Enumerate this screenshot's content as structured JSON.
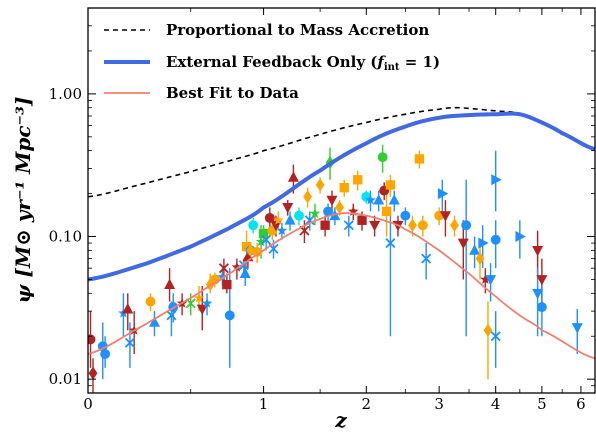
{
  "chart_data": {
    "type": "scatter",
    "title": "",
    "xlabel": "z",
    "ylabel": "ψ [M⊙ yr⁻¹ Mpc⁻³]",
    "x_scale": "log(1+z)",
    "y_scale": "log",
    "xlim": [
      0,
      6.4
    ],
    "ylim": [
      0.008,
      4.0
    ],
    "x_ticks": [
      0,
      1,
      2,
      3,
      4,
      5,
      6
    ],
    "x_tick_labels": [
      "0",
      "1",
      "2",
      "3",
      "4",
      "5",
      "6"
    ],
    "y_ticks": [
      0.01,
      0.1,
      1.0
    ],
    "y_tick_labels": [
      "0.01",
      "0.10",
      "1.00"
    ],
    "grid": false,
    "legend_position": "top-left",
    "series": [
      {
        "name": "Proportional to Mass Accretion",
        "kind": "line",
        "style": "dashed",
        "color": "#000000",
        "x": [
          0,
          0.25,
          0.5,
          0.75,
          1.0,
          1.5,
          2.0,
          2.5,
          3.0,
          3.25,
          3.5,
          4.0,
          4.5,
          5.0,
          5.5,
          6.4
        ],
        "y": [
          0.19,
          0.235,
          0.285,
          0.34,
          0.4,
          0.52,
          0.63,
          0.72,
          0.78,
          0.8,
          0.79,
          0.76,
          0.73,
          0.62,
          0.53,
          0.41
        ]
      },
      {
        "name": "External Feedback Only (f_int = 1)",
        "legend_label": "External Feedback Only (",
        "legend_math": "f",
        "legend_sub": "int",
        "legend_eq": " = 1)",
        "kind": "line",
        "style": "solid",
        "color": "#4169e1",
        "x": [
          0,
          0.25,
          0.5,
          0.75,
          1.0,
          1.5,
          2.0,
          2.5,
          3.0,
          3.5,
          4.0,
          4.5,
          5.0,
          5.5,
          6.4
        ],
        "y": [
          0.05,
          0.064,
          0.085,
          0.115,
          0.16,
          0.29,
          0.45,
          0.59,
          0.68,
          0.71,
          0.72,
          0.72,
          0.63,
          0.53,
          0.41
        ]
      },
      {
        "name": "Best Fit to Data",
        "kind": "line",
        "style": "solid",
        "color": "#f08070",
        "x": [
          0,
          0.25,
          0.5,
          0.75,
          1.0,
          1.25,
          1.5,
          1.75,
          2.0,
          2.25,
          2.5,
          3.0,
          3.5,
          4.0,
          4.5,
          5.0,
          6.4
        ],
        "y": [
          0.015,
          0.024,
          0.037,
          0.055,
          0.08,
          0.108,
          0.133,
          0.146,
          0.14,
          0.128,
          0.112,
          0.08,
          0.055,
          0.038,
          0.028,
          0.022,
          0.014
        ]
      }
    ],
    "points": [
      {
        "x": 0.01,
        "y": 0.019,
        "shape": "circle",
        "color": "#b22222",
        "err": [
          0.012,
          0.03
        ]
      },
      {
        "x": 0.02,
        "y": 0.011,
        "shape": "diamond",
        "color": "#b22222",
        "err": [
          0.008,
          0.014
        ]
      },
      {
        "x": 0.06,
        "y": 0.017,
        "shape": "circle",
        "color": "#1e90ff",
        "err": [
          0.01,
          0.025
        ]
      },
      {
        "x": 0.07,
        "y": 0.015,
        "shape": "circle",
        "color": "#1e90ff",
        "err": [
          0.012,
          0.02
        ]
      },
      {
        "x": 0.15,
        "y": 0.029,
        "shape": "star",
        "color": "#1e90ff",
        "err": [
          0.02,
          0.04
        ]
      },
      {
        "x": 0.17,
        "y": 0.031,
        "shape": "triangle-up",
        "color": "#b22222",
        "err": [
          0.022,
          0.04
        ]
      },
      {
        "x": 0.18,
        "y": 0.018,
        "shape": "x",
        "color": "#1e90ff",
        "err": [
          0.012,
          0.025
        ]
      },
      {
        "x": 0.2,
        "y": 0.022,
        "shape": "star",
        "color": "#b22222",
        "err": [
          0.015,
          0.03
        ]
      },
      {
        "x": 0.28,
        "y": 0.035,
        "shape": "circle",
        "color": "#ffa500",
        "err": [
          0.03,
          0.04
        ]
      },
      {
        "x": 0.3,
        "y": 0.025,
        "shape": "triangle-up",
        "color": "#1e90ff",
        "err": [
          0.02,
          0.03
        ]
      },
      {
        "x": 0.38,
        "y": 0.046,
        "shape": "triangle-up",
        "color": "#b22222",
        "err": [
          0.035,
          0.06
        ]
      },
      {
        "x": 0.39,
        "y": 0.028,
        "shape": "x",
        "color": "#1e90ff",
        "err": [
          0.02,
          0.035
        ]
      },
      {
        "x": 0.4,
        "y": 0.032,
        "shape": "circle",
        "color": "#1e90ff",
        "err": [
          0.025,
          0.04
        ]
      },
      {
        "x": 0.45,
        "y": 0.034,
        "shape": "star",
        "color": "#b22222",
        "err": [
          0.028,
          0.04
        ]
      },
      {
        "x": 0.5,
        "y": 0.034,
        "shape": "x",
        "color": "#32cd32",
        "err": [
          0.028,
          0.04
        ]
      },
      {
        "x": 0.55,
        "y": 0.037,
        "shape": "star",
        "color": "#ffa500",
        "err": [
          0.03,
          0.045
        ]
      },
      {
        "x": 0.57,
        "y": 0.031,
        "shape": "triangle-down",
        "color": "#b22222",
        "err": [
          0.022,
          0.045
        ]
      },
      {
        "x": 0.6,
        "y": 0.034,
        "shape": "star",
        "color": "#1e90ff",
        "err": [
          0.028,
          0.04
        ]
      },
      {
        "x": 0.62,
        "y": 0.046,
        "shape": "diamond",
        "color": "#ffa500",
        "err": [
          0.04,
          0.055
        ]
      },
      {
        "x": 0.65,
        "y": 0.05,
        "shape": "circle",
        "color": "#ffa500",
        "err": [
          0.044,
          0.056
        ]
      },
      {
        "x": 0.7,
        "y": 0.052,
        "shape": "star",
        "color": "#1e90ff",
        "err": [
          0.045,
          0.06
        ]
      },
      {
        "x": 0.71,
        "y": 0.06,
        "shape": "x",
        "color": "#b22222",
        "err": [
          0.05,
          0.07
        ]
      },
      {
        "x": 0.73,
        "y": 0.046,
        "shape": "square",
        "color": "#b22222",
        "err": [
          0.04,
          0.055
        ]
      },
      {
        "x": 0.75,
        "y": 0.028,
        "shape": "circle",
        "color": "#1e90ff",
        "err": [
          0.012,
          0.06
        ]
      },
      {
        "x": 0.8,
        "y": 0.061,
        "shape": "star",
        "color": "#b22222",
        "err": [
          0.05,
          0.07
        ]
      },
      {
        "x": 0.85,
        "y": 0.063,
        "shape": "x",
        "color": "#1e90ff",
        "err": [
          0.055,
          0.07
        ]
      },
      {
        "x": 0.86,
        "y": 0.055,
        "shape": "triangle-up",
        "color": "#1e90ff",
        "err": [
          0.045,
          0.065
        ]
      },
      {
        "x": 0.87,
        "y": 0.085,
        "shape": "square",
        "color": "#ffa500",
        "err": [
          0.06,
          0.11
        ]
      },
      {
        "x": 0.88,
        "y": 0.072,
        "shape": "triangle-up",
        "color": "#b22222",
        "err": [
          0.06,
          0.085
        ]
      },
      {
        "x": 0.9,
        "y": 0.08,
        "shape": "circle",
        "color": "#1e90ff",
        "err": [
          0.07,
          0.09
        ]
      },
      {
        "x": 0.9,
        "y": 0.08,
        "shape": "diamond",
        "color": "#ffa500",
        "err": [
          0.07,
          0.09
        ]
      },
      {
        "x": 0.92,
        "y": 0.12,
        "shape": "circle",
        "color": "#00e5ee",
        "err": [
          0.105,
          0.135
        ]
      },
      {
        "x": 0.95,
        "y": 0.078,
        "shape": "circle",
        "color": "#ffa500",
        "err": [
          0.065,
          0.09
        ]
      },
      {
        "x": 0.98,
        "y": 0.092,
        "shape": "star",
        "color": "#32cd32",
        "err": [
          0.07,
          0.12
        ]
      },
      {
        "x": 1.0,
        "y": 0.105,
        "shape": "square",
        "color": "#32cd32",
        "err": [
          0.09,
          0.12
        ]
      },
      {
        "x": 1.02,
        "y": 0.095,
        "shape": "x",
        "color": "#1e90ff",
        "err": [
          0.08,
          0.11
        ]
      },
      {
        "x": 1.05,
        "y": 0.135,
        "shape": "circle",
        "color": "#b22222",
        "err": [
          0.11,
          0.16
        ]
      },
      {
        "x": 1.07,
        "y": 0.11,
        "shape": "circle",
        "color": "#ffa500",
        "err": [
          0.095,
          0.125
        ]
      },
      {
        "x": 1.08,
        "y": 0.082,
        "shape": "x",
        "color": "#1e90ff",
        "err": [
          0.07,
          0.095
        ]
      },
      {
        "x": 1.1,
        "y": 0.12,
        "shape": "triangle-down",
        "color": "#b22222",
        "err": [
          0.1,
          0.14
        ]
      },
      {
        "x": 1.12,
        "y": 0.13,
        "shape": "star",
        "color": "#ffa500",
        "err": [
          0.11,
          0.15
        ]
      },
      {
        "x": 1.15,
        "y": 0.11,
        "shape": "star",
        "color": "#1e90ff",
        "err": [
          0.095,
          0.125
        ]
      },
      {
        "x": 1.2,
        "y": 0.16,
        "shape": "triangle-down",
        "color": "#b22222",
        "err": [
          0.14,
          0.18
        ]
      },
      {
        "x": 1.22,
        "y": 0.13,
        "shape": "triangle-up",
        "color": "#1e90ff",
        "err": [
          0.11,
          0.15
        ]
      },
      {
        "x": 1.25,
        "y": 0.26,
        "shape": "triangle-up",
        "color": "#b22222",
        "err": [
          0.2,
          0.32
        ]
      },
      {
        "x": 1.3,
        "y": 0.14,
        "shape": "circle",
        "color": "#00e5ee",
        "err": [
          0.12,
          0.16
        ]
      },
      {
        "x": 1.35,
        "y": 0.11,
        "shape": "x",
        "color": "#b22222",
        "err": [
          0.09,
          0.13
        ]
      },
      {
        "x": 1.38,
        "y": 0.19,
        "shape": "diamond",
        "color": "#ffa500",
        "err": [
          0.16,
          0.22
        ]
      },
      {
        "x": 1.4,
        "y": 0.13,
        "shape": "x",
        "color": "#1e90ff",
        "err": [
          0.11,
          0.15
        ]
      },
      {
        "x": 1.45,
        "y": 0.145,
        "shape": "star",
        "color": "#32cd32",
        "err": [
          0.12,
          0.17
        ]
      },
      {
        "x": 1.5,
        "y": 0.23,
        "shape": "diamond",
        "color": "#ffa500",
        "err": [
          0.2,
          0.26
        ]
      },
      {
        "x": 1.55,
        "y": 0.12,
        "shape": "square",
        "color": "#b22222",
        "err": [
          0.1,
          0.14
        ]
      },
      {
        "x": 1.58,
        "y": 0.15,
        "shape": "circle",
        "color": "#1e90ff",
        "err": [
          0.13,
          0.17
        ]
      },
      {
        "x": 1.6,
        "y": 0.33,
        "shape": "diamond",
        "color": "#32cd32",
        "err": [
          0.25,
          0.42
        ]
      },
      {
        "x": 1.62,
        "y": 0.18,
        "shape": "triangle-down",
        "color": "#b22222",
        "err": [
          0.15,
          0.21
        ]
      },
      {
        "x": 1.65,
        "y": 0.14,
        "shape": "triangle-up",
        "color": "#1e90ff",
        "err": [
          0.12,
          0.16
        ]
      },
      {
        "x": 1.7,
        "y": 0.16,
        "shape": "diamond",
        "color": "#ffa500",
        "err": [
          0.14,
          0.18
        ]
      },
      {
        "x": 1.75,
        "y": 0.22,
        "shape": "square",
        "color": "#ffa500",
        "err": [
          0.19,
          0.25
        ]
      },
      {
        "x": 1.8,
        "y": 0.12,
        "shape": "x",
        "color": "#1e90ff",
        "err": [
          0.1,
          0.14
        ]
      },
      {
        "x": 1.85,
        "y": 0.15,
        "shape": "star",
        "color": "#b22222",
        "err": [
          0.13,
          0.17
        ]
      },
      {
        "x": 1.9,
        "y": 0.25,
        "shape": "square",
        "color": "#ffa500",
        "err": [
          0.21,
          0.29
        ]
      },
      {
        "x": 1.95,
        "y": 0.13,
        "shape": "square",
        "color": "#b22222",
        "err": [
          0.11,
          0.15
        ]
      },
      {
        "x": 2.0,
        "y": 0.19,
        "shape": "circle",
        "color": "#00e5ee",
        "err": [
          0.17,
          0.21
        ]
      },
      {
        "x": 2.05,
        "y": 0.18,
        "shape": "star",
        "color": "#1e90ff",
        "err": [
          0.15,
          0.21
        ]
      },
      {
        "x": 2.1,
        "y": 0.12,
        "shape": "triangle-down",
        "color": "#b22222",
        "err": [
          0.1,
          0.14
        ]
      },
      {
        "x": 2.15,
        "y": 0.18,
        "shape": "triangle-up",
        "color": "#1e90ff",
        "err": [
          0.15,
          0.21
        ]
      },
      {
        "x": 2.2,
        "y": 0.36,
        "shape": "circle",
        "color": "#32cd32",
        "err": [
          0.28,
          0.44
        ]
      },
      {
        "x": 2.22,
        "y": 0.21,
        "shape": "circle",
        "color": "#b22222",
        "err": [
          0.18,
          0.24
        ]
      },
      {
        "x": 2.25,
        "y": 0.15,
        "shape": "square",
        "color": "#ffa500",
        "err": [
          0.1,
          0.2
        ]
      },
      {
        "x": 2.3,
        "y": 0.23,
        "shape": "square",
        "color": "#ffa500",
        "err": [
          0.19,
          0.27
        ]
      },
      {
        "x": 2.3,
        "y": 0.09,
        "shape": "x",
        "color": "#1e90ff",
        "err": [
          0.02,
          0.16
        ]
      },
      {
        "x": 2.35,
        "y": 0.18,
        "shape": "triangle-up",
        "color": "#1e90ff",
        "err": [
          0.15,
          0.21
        ]
      },
      {
        "x": 2.4,
        "y": 0.12,
        "shape": "triangle-down",
        "color": "#b22222",
        "err": [
          0.1,
          0.14
        ]
      },
      {
        "x": 2.5,
        "y": 0.14,
        "shape": "circle",
        "color": "#1e90ff",
        "err": [
          0.12,
          0.16
        ]
      },
      {
        "x": 2.6,
        "y": 0.12,
        "shape": "diamond",
        "color": "#ffa500",
        "err": [
          0.1,
          0.14
        ]
      },
      {
        "x": 2.7,
        "y": 0.35,
        "shape": "square",
        "color": "#ffa500",
        "err": [
          0.3,
          0.4
        ]
      },
      {
        "x": 2.75,
        "y": 0.12,
        "shape": "circle",
        "color": "#ffa500",
        "err": [
          0.1,
          0.14
        ]
      },
      {
        "x": 2.8,
        "y": 0.07,
        "shape": "x",
        "color": "#1e90ff",
        "err": [
          0.05,
          0.09
        ]
      },
      {
        "x": 3.0,
        "y": 0.14,
        "shape": "circle",
        "color": "#ffa500",
        "err": [
          0.12,
          0.16
        ]
      },
      {
        "x": 3.05,
        "y": 0.2,
        "shape": "triangle-right",
        "color": "#1e90ff",
        "err": [
          0.15,
          0.25
        ]
      },
      {
        "x": 3.1,
        "y": 0.14,
        "shape": "triangle-down",
        "color": "#b22222",
        "err": [
          0.1,
          0.18
        ]
      },
      {
        "x": 3.25,
        "y": 0.12,
        "shape": "diamond",
        "color": "#ffa500",
        "err": [
          0.1,
          0.14
        ]
      },
      {
        "x": 3.4,
        "y": 0.09,
        "shape": "triangle-down",
        "color": "#b22222",
        "err": [
          0.05,
          0.13
        ]
      },
      {
        "x": 3.45,
        "y": 0.12,
        "shape": "circle",
        "color": "#1e90ff",
        "err": [
          0.02,
          0.25
        ]
      },
      {
        "x": 3.6,
        "y": 0.08,
        "shape": "triangle-up",
        "color": "#1e90ff",
        "err": [
          0.06,
          0.1
        ]
      },
      {
        "x": 3.7,
        "y": 0.07,
        "shape": "diamond",
        "color": "#ffa500",
        "err": [
          0.05,
          0.09
        ]
      },
      {
        "x": 3.75,
        "y": 0.09,
        "shape": "triangle-right",
        "color": "#1e90ff",
        "err": [
          0.06,
          0.12
        ]
      },
      {
        "x": 3.8,
        "y": 0.05,
        "shape": "star",
        "color": "#b22222",
        "err": [
          0.04,
          0.06
        ]
      },
      {
        "x": 3.85,
        "y": 0.022,
        "shape": "diamond",
        "color": "#ffa500",
        "err": [
          0.01,
          0.035
        ]
      },
      {
        "x": 3.9,
        "y": 0.05,
        "shape": "triangle-down",
        "color": "#1e90ff",
        "err": [
          0.035,
          0.065
        ]
      },
      {
        "x": 4.0,
        "y": 0.25,
        "shape": "triangle-right",
        "color": "#1e90ff",
        "err": [
          0.15,
          0.4
        ]
      },
      {
        "x": 4.0,
        "y": 0.095,
        "shape": "circle",
        "color": "#1e90ff",
        "err": [
          0.06,
          0.13
        ]
      },
      {
        "x": 4.0,
        "y": 0.02,
        "shape": "x",
        "color": "#1e90ff",
        "err": [
          0.012,
          0.03
        ]
      },
      {
        "x": 4.5,
        "y": 0.1,
        "shape": "triangle-right",
        "color": "#1e90ff",
        "err": [
          0.07,
          0.13
        ]
      },
      {
        "x": 4.9,
        "y": 0.08,
        "shape": "triangle-down",
        "color": "#b22222",
        "err": [
          0.05,
          0.11
        ]
      },
      {
        "x": 4.9,
        "y": 0.04,
        "shape": "triangle-down",
        "color": "#1e90ff",
        "err": [
          0.02,
          0.06
        ]
      },
      {
        "x": 5.0,
        "y": 0.05,
        "shape": "triangle-down",
        "color": "#b22222",
        "err": [
          0.03,
          0.07
        ]
      },
      {
        "x": 5.0,
        "y": 0.032,
        "shape": "circle",
        "color": "#1e90ff",
        "err": [
          0.02,
          0.045
        ]
      },
      {
        "x": 5.9,
        "y": 0.023,
        "shape": "triangle-down",
        "color": "#1e90ff",
        "err": [
          0.015,
          0.031
        ]
      }
    ]
  }
}
